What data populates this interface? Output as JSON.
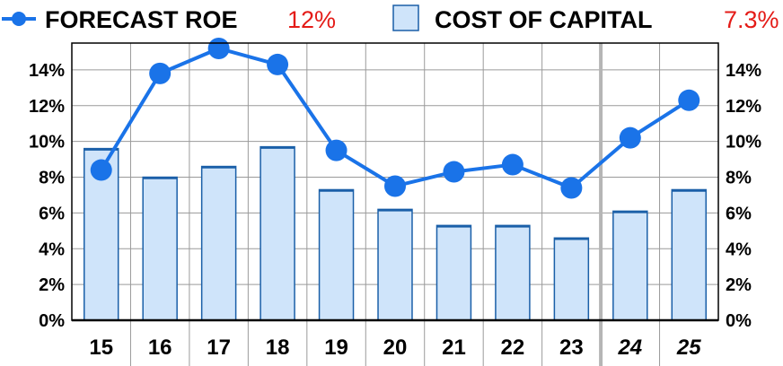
{
  "legend": {
    "line_label": "FORECAST ROE",
    "line_value": "12%",
    "bar_label": "COST OF CAPITAL",
    "bar_value": "7.3%"
  },
  "chart_data": {
    "type": "bar",
    "categories": [
      "15",
      "16",
      "17",
      "18",
      "19",
      "20",
      "21",
      "22",
      "23",
      "24",
      "25"
    ],
    "estimate_categories": [
      "24",
      "25"
    ],
    "series": [
      {
        "name": "COST OF CAPITAL",
        "type": "bar",
        "values": [
          9.6,
          8.0,
          8.6,
          9.7,
          7.3,
          6.2,
          5.3,
          5.3,
          4.6,
          6.1,
          7.3
        ]
      },
      {
        "name": "FORECAST ROE",
        "type": "line",
        "values": [
          8.4,
          13.8,
          15.2,
          14.3,
          9.5,
          7.5,
          8.3,
          8.7,
          7.4,
          10.2,
          12.3
        ]
      }
    ],
    "y_ticks": [
      "0%",
      "2%",
      "4%",
      "6%",
      "8%",
      "10%",
      "12%",
      "14%"
    ],
    "ylim": [
      0,
      15.5
    ],
    "grid": true,
    "legend_position": "top",
    "colors": {
      "line": "#1a73e8",
      "bar_fill": "#cfe4fa",
      "bar_edge": "#1a5fa8",
      "legend_value": "#e41b17"
    }
  }
}
